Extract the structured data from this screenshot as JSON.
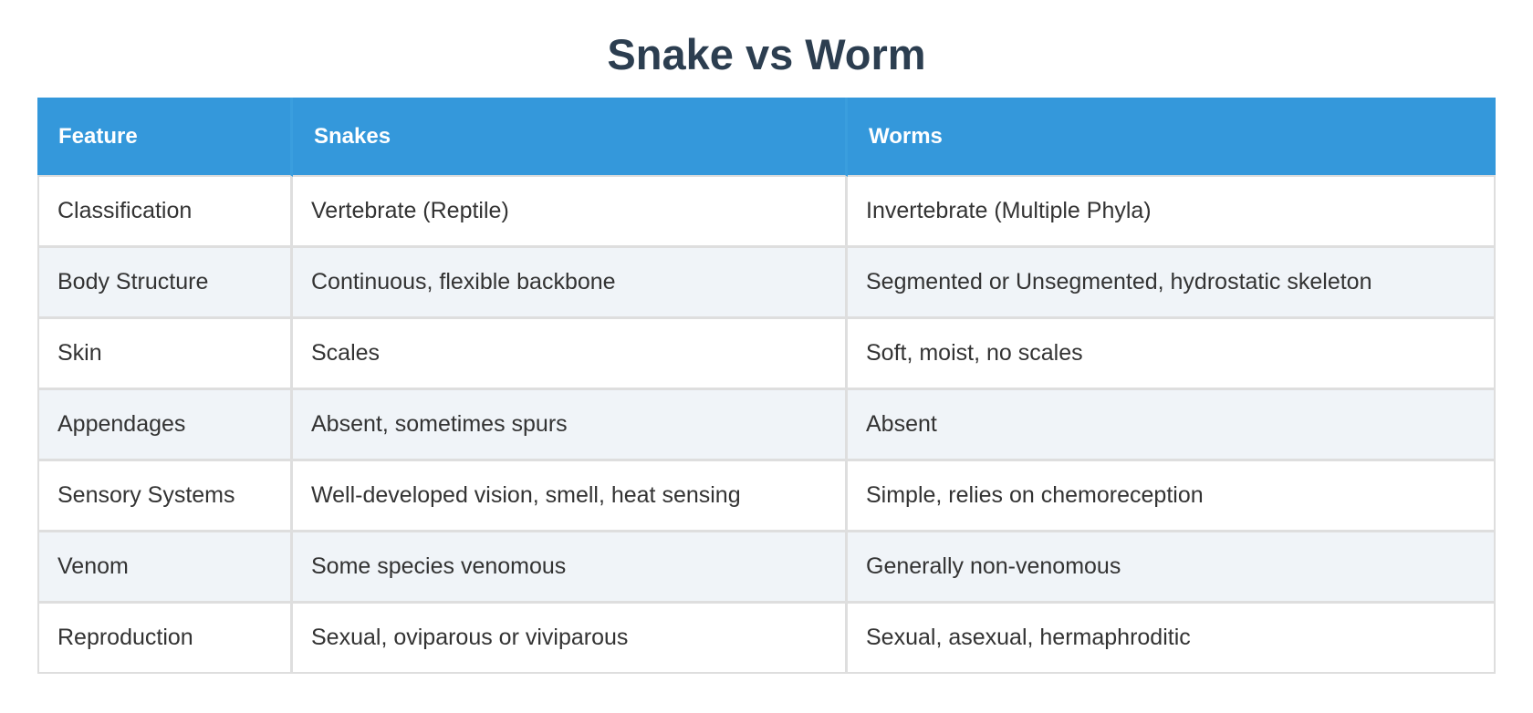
{
  "title": "Snake vs Worm",
  "table": {
    "headers": [
      "Feature",
      "Snakes",
      "Worms"
    ],
    "rows": [
      [
        "Classification",
        "Vertebrate (Reptile)",
        "Invertebrate (Multiple Phyla)"
      ],
      [
        "Body Structure",
        "Continuous, flexible backbone",
        "Segmented or Unsegmented, hydrostatic skeleton"
      ],
      [
        "Skin",
        "Scales",
        "Soft, moist, no scales"
      ],
      [
        "Appendages",
        "Absent, sometimes spurs",
        "Absent"
      ],
      [
        "Sensory Systems",
        "Well-developed vision, smell, heat sensing",
        "Simple, relies on chemoreception"
      ],
      [
        "Venom",
        "Some species venomous",
        "Generally non-venomous"
      ],
      [
        "Reproduction",
        "Sexual, oviparous or viviparous",
        "Sexual, asexual, hermaphroditic"
      ]
    ]
  },
  "colors": {
    "header_bg": "#3498db",
    "title": "#2c3e50",
    "row_alt_bg": "#f0f4f8"
  }
}
